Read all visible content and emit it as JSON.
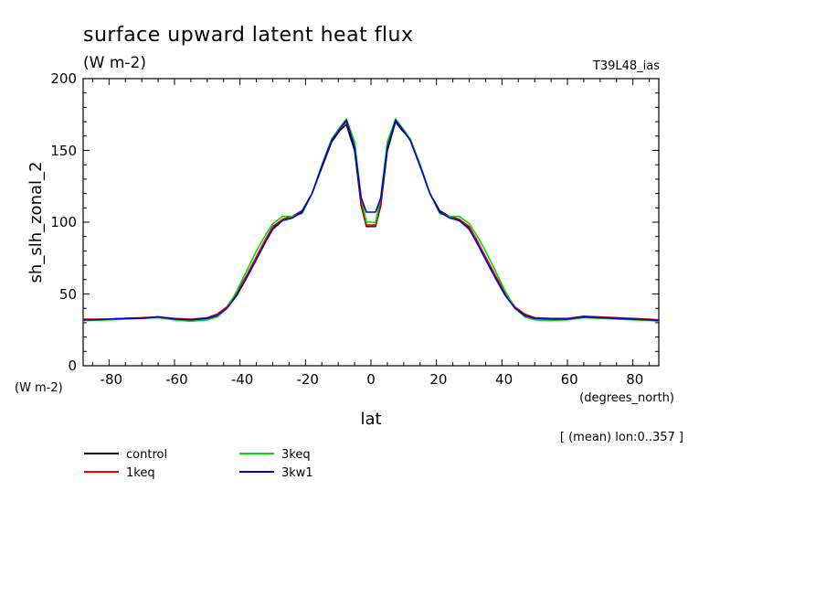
{
  "header": {
    "title": "surface upward latent heat flux",
    "units": "(W m-2)",
    "experiment": "T39L48_ias"
  },
  "axis": {
    "ylabel": "sh_slh_zonal_2",
    "yunits": "(W m-2)",
    "xlabel": "lat",
    "xunits": "(degrees_north)",
    "xticks": [
      "-80",
      "-60",
      "-40",
      "-20",
      "0",
      "20",
      "40",
      "60",
      "80"
    ],
    "yticks": [
      "0",
      "50",
      "100",
      "150",
      "200"
    ]
  },
  "note": "[ (mean) lon:0..357 ]",
  "legend": [
    {
      "label": "control",
      "color": "#000000"
    },
    {
      "label": "3keq",
      "color": "#00dd00"
    },
    {
      "label": "1keq",
      "color": "#ee0000"
    },
    {
      "label": "3kw1",
      "color": "#0000dd"
    }
  ],
  "chart_data": {
    "type": "line",
    "title": "surface upward latent heat flux",
    "xlabel": "lat",
    "ylabel": "sh_slh_zonal_2",
    "xlim": [
      -87.9,
      87.9
    ],
    "ylim": [
      0,
      200
    ],
    "grid": false,
    "legend_position": "below-left",
    "x": [
      -87.9,
      -85,
      -80,
      -75,
      -70,
      -65,
      -60,
      -55,
      -50,
      -47,
      -44,
      -41,
      -38,
      -35,
      -32,
      -30,
      -27,
      -24,
      -21,
      -18,
      -15,
      -12,
      -9.5,
      -7.5,
      -5,
      -3,
      -1.4,
      1.4,
      3,
      5,
      7.5,
      9.5,
      12,
      15,
      18,
      21,
      24,
      27,
      30,
      32,
      35,
      38,
      41,
      44,
      47,
      50,
      55,
      60,
      65,
      70,
      75,
      80,
      85,
      87.9
    ],
    "series": [
      {
        "name": "control",
        "color": "#000000",
        "values": [
          32,
          32.2,
          32.5,
          33,
          33,
          34,
          32.5,
          32,
          33,
          35,
          40,
          50,
          62,
          75,
          88,
          96,
          102,
          104,
          108,
          120,
          138,
          156,
          164,
          168,
          150,
          112,
          97,
          97,
          112,
          150,
          170,
          164,
          158,
          140,
          120,
          108,
          104,
          102,
          96,
          88,
          75,
          62,
          50,
          40,
          35,
          33,
          32.5,
          32.5,
          34,
          33.5,
          33,
          32.5,
          32,
          31.5
        ]
      },
      {
        "name": "1keq",
        "color": "#ee0000",
        "values": [
          32.5,
          32.5,
          32.5,
          33,
          33.5,
          34,
          33,
          32.5,
          33.5,
          36,
          41,
          51,
          63,
          76,
          89,
          97,
          102,
          103.5,
          107.5,
          120,
          139,
          157,
          165,
          170,
          153,
          114,
          98,
          98,
          114,
          153,
          171,
          165,
          157,
          139,
          120,
          107.5,
          103.5,
          102,
          97,
          89,
          76,
          63,
          51,
          41,
          36,
          33.5,
          33,
          33,
          34.5,
          34,
          33.5,
          33,
          32.5,
          32
        ]
      },
      {
        "name": "3keq",
        "color": "#00dd00",
        "values": [
          31.5,
          31.5,
          32,
          32.5,
          33,
          33.5,
          32,
          31,
          32,
          34,
          40,
          52,
          66,
          80,
          92,
          99,
          104,
          104,
          106,
          120,
          140,
          158,
          166,
          172,
          156,
          118,
          100,
          100,
          118,
          156,
          172,
          166,
          158,
          140,
          120,
          106,
          104,
          104,
          99,
          92,
          80,
          66,
          52,
          40,
          34,
          32,
          31.5,
          32,
          33.5,
          33,
          32.5,
          32,
          31.5,
          31
        ]
      },
      {
        "name": "3kw1",
        "color": "#0000dd",
        "values": [
          32,
          32,
          32.5,
          33,
          33,
          34,
          32.5,
          32,
          33,
          35,
          40,
          49,
          61,
          74,
          87,
          95,
          101,
          103,
          107,
          120,
          139,
          157,
          165,
          171,
          152,
          117,
          107,
          107,
          117,
          152,
          171,
          165,
          157,
          139,
          120,
          107,
          103,
          101,
          95,
          87,
          74,
          61,
          49,
          40,
          35,
          33,
          32.5,
          32.5,
          34,
          33.5,
          33,
          32.5,
          32,
          31.5
        ]
      }
    ]
  }
}
